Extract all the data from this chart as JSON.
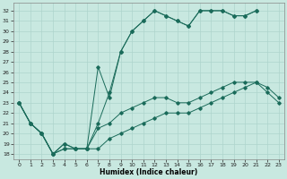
{
  "title": "",
  "xlabel": "Humidex (Indice chaleur)",
  "background_color": "#c8e8e0",
  "grid_color": "#aed4cc",
  "line_color": "#1a6b5a",
  "x_ticks": [
    0,
    1,
    2,
    3,
    4,
    5,
    6,
    7,
    8,
    9,
    10,
    11,
    12,
    13,
    14,
    15,
    16,
    17,
    18,
    19,
    20,
    21,
    22,
    23
  ],
  "y_ticks": [
    18,
    19,
    20,
    21,
    22,
    23,
    24,
    25,
    26,
    27,
    28,
    29,
    30,
    31,
    32
  ],
  "ylim": [
    17.5,
    32.8
  ],
  "xlim": [
    -0.5,
    23.5
  ],
  "series1_x": [
    0,
    1,
    2,
    3,
    4,
    5,
    6,
    7,
    8,
    9,
    10,
    11,
    12,
    13,
    14,
    15,
    16,
    17,
    18,
    19,
    20,
    21
  ],
  "series1_y": [
    23,
    21,
    20,
    18,
    19,
    18.5,
    18.5,
    21,
    24,
    28,
    30,
    31,
    32,
    31.5,
    31,
    30.5,
    32,
    32,
    32,
    31.5,
    31.5,
    32
  ],
  "series2_x": [
    0,
    1,
    2,
    3,
    4,
    5,
    6,
    7,
    8,
    9,
    10,
    11,
    12,
    13,
    14,
    15,
    16,
    17,
    18,
    19,
    20,
    21
  ],
  "series2_y": [
    23,
    21,
    20,
    18,
    19,
    18.5,
    18.5,
    26.5,
    23.5,
    28,
    30,
    31,
    32,
    31.5,
    31,
    30.5,
    32,
    32,
    32,
    31.5,
    31.5,
    32
  ],
  "series3_x": [
    0,
    1,
    2,
    3,
    4,
    5,
    6,
    7,
    8,
    9,
    10,
    11,
    12,
    13,
    14,
    15,
    16,
    17,
    18,
    19,
    20,
    21,
    22,
    23
  ],
  "series3_y": [
    23,
    21,
    20,
    18,
    18.5,
    18.5,
    18.5,
    20.5,
    21,
    22,
    22.5,
    23,
    23.5,
    23.5,
    23,
    23,
    23.5,
    24,
    24.5,
    25,
    25,
    25,
    24.5,
    23.5
  ],
  "series4_x": [
    0,
    1,
    2,
    3,
    4,
    5,
    6,
    7,
    8,
    9,
    10,
    11,
    12,
    13,
    14,
    15,
    16,
    17,
    18,
    19,
    20,
    21,
    22,
    23
  ],
  "series4_y": [
    23,
    21,
    20,
    18,
    18.5,
    18.5,
    18.5,
    18.5,
    19.5,
    20,
    20.5,
    21,
    21.5,
    22,
    22,
    22,
    22.5,
    23,
    23.5,
    24,
    24.5,
    25,
    24,
    23
  ]
}
